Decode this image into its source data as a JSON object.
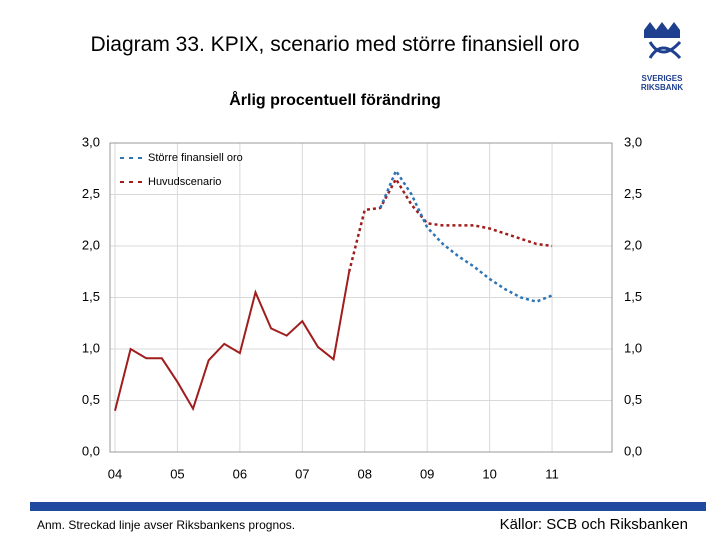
{
  "chart_data": {
    "type": "line",
    "title": "Diagram 33. KPIX, scenario med större finansiell oro",
    "subtitle": "Årlig procentuell förändring",
    "note": "Anm. Streckad linje avser Riksbankens prognos.",
    "source": "Källor: SCB och Riksbanken",
    "logo": [
      "SVERIGES",
      "RIKSBANK"
    ],
    "x": [
      2004,
      2004.25,
      2004.5,
      2004.75,
      2005,
      2005.25,
      2005.5,
      2005.75,
      2006,
      2006.25,
      2006.5,
      2006.75,
      2007,
      2007.25,
      2007.5,
      2007.75,
      2008,
      2008.25,
      2008.5,
      2008.75,
      2009,
      2009.25,
      2009.5,
      2009.75,
      2010,
      2010.25,
      2010.5,
      2010.75,
      2011
    ],
    "series": [
      {
        "color": "#a01d1d",
        "dashed": false,
        "values": [
          0.4,
          1.0,
          0.91,
          0.91,
          0.68,
          0.42,
          0.89,
          1.05,
          0.96,
          1.55,
          1.2,
          1.13,
          1.27,
          1.02,
          0.9,
          1.75,
          null,
          null,
          null,
          null,
          null,
          null,
          null,
          null,
          null,
          null,
          null,
          null,
          null
        ]
      },
      {
        "name": "Större finansiell oro",
        "color": "#2e75b6",
        "dashed": true,
        "values": [
          null,
          null,
          null,
          null,
          null,
          null,
          null,
          null,
          null,
          null,
          null,
          null,
          null,
          null,
          null,
          null,
          null,
          2.37,
          2.73,
          2.5,
          2.18,
          2.02,
          1.9,
          1.8,
          1.68,
          1.58,
          1.5,
          1.46,
          1.52
        ]
      },
      {
        "name": "Huvudscenario",
        "color": "#a01d1d",
        "dashed": true,
        "values": [
          null,
          null,
          null,
          null,
          null,
          null,
          null,
          null,
          null,
          null,
          null,
          null,
          null,
          null,
          null,
          1.75,
          2.35,
          2.37,
          2.65,
          2.4,
          2.22,
          2.2,
          2.2,
          2.2,
          2.17,
          2.12,
          2.07,
          2.02,
          2.0
        ]
      }
    ],
    "xlim": [
      2003.92,
      2011.96
    ],
    "xticks": [
      {
        "value": 2004,
        "label": "04"
      },
      {
        "value": 2005,
        "label": "05"
      },
      {
        "value": 2006,
        "label": "06"
      },
      {
        "value": 2007,
        "label": "07"
      },
      {
        "value": 2008,
        "label": "08"
      },
      {
        "value": 2009,
        "label": "09"
      },
      {
        "value": 2010,
        "label": "10"
      },
      {
        "value": 2011,
        "label": "11"
      }
    ],
    "ylim": [
      0,
      3
    ],
    "yticks": [
      {
        "value": 0,
        "label": "0,0"
      },
      {
        "value": 0.5,
        "label": "0,5"
      },
      {
        "value": 1,
        "label": "1,0"
      },
      {
        "value": 1.5,
        "label": "1,5"
      },
      {
        "value": 2,
        "label": "2,0"
      },
      {
        "value": 2.5,
        "label": "2,5"
      },
      {
        "value": 3,
        "label": "3,0"
      }
    ],
    "grid": true,
    "legend": "upper left"
  }
}
